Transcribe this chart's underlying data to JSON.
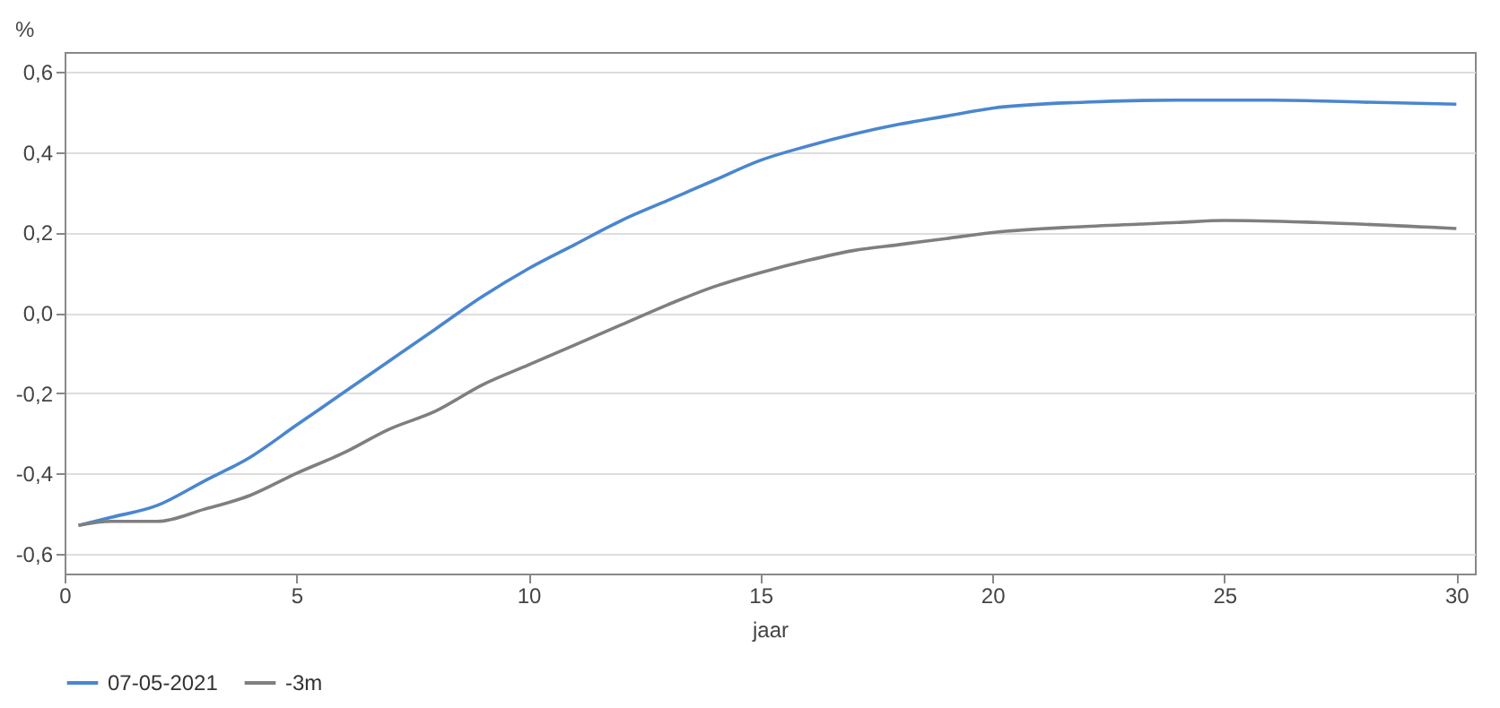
{
  "chart_data": {
    "type": "line",
    "xlabel": "jaar",
    "ylabel": "%",
    "xlim": [
      0,
      30.4
    ],
    "xticks": [
      0,
      5,
      10,
      15,
      20,
      25,
      30
    ],
    "ylim": [
      -0.65,
      0.65
    ],
    "yticks": [
      {
        "value": -0.6,
        "label": "-0,6"
      },
      {
        "value": -0.4,
        "label": "-0,4"
      },
      {
        "value": -0.2,
        "label": "-0,2"
      },
      {
        "value": 0,
        "label": "0,0"
      },
      {
        "value": 0.2,
        "label": "0,2"
      },
      {
        "value": 0.4,
        "label": "0,4"
      },
      {
        "value": 0.6,
        "label": "0,6"
      }
    ],
    "grid": "y",
    "legend": "bottom left",
    "series": [
      {
        "name": "07-05-2021",
        "color": "#4a86d0",
        "x": [
          0.3,
          1,
          2,
          3,
          4,
          5,
          6,
          7,
          8,
          9,
          10,
          11,
          12,
          13,
          14,
          15,
          16,
          17,
          18,
          19,
          20,
          22,
          24,
          26,
          28,
          30
        ],
        "values": [
          -0.53,
          -0.51,
          -0.48,
          -0.42,
          -0.36,
          -0.28,
          -0.2,
          -0.12,
          -0.04,
          0.04,
          0.11,
          0.17,
          0.23,
          0.28,
          0.33,
          0.38,
          0.415,
          0.445,
          0.47,
          0.49,
          0.51,
          0.525,
          0.53,
          0.53,
          0.525,
          0.52
        ]
      },
      {
        "name": "-3m",
        "color": "#7f7f7f",
        "x": [
          0.3,
          1,
          2,
          3,
          4,
          5,
          6,
          7,
          8,
          9,
          10,
          11,
          12,
          13,
          14,
          15,
          16,
          17,
          18,
          19,
          20,
          22,
          24,
          25,
          27,
          30
        ],
        "values": [
          -0.53,
          -0.52,
          -0.52,
          -0.49,
          -0.455,
          -0.4,
          -0.35,
          -0.29,
          -0.245,
          -0.18,
          -0.13,
          -0.08,
          -0.03,
          0.02,
          0.065,
          0.1,
          0.13,
          0.155,
          0.17,
          0.185,
          0.2,
          0.215,
          0.225,
          0.23,
          0.225,
          0.21
        ]
      }
    ]
  }
}
